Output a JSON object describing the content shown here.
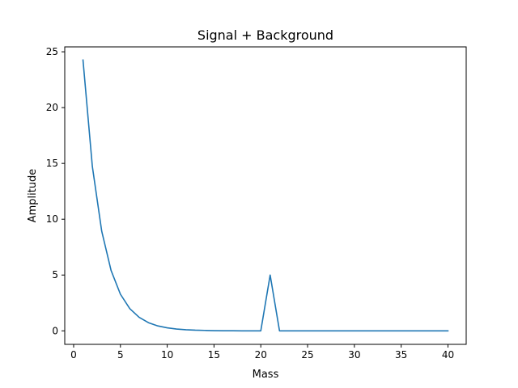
{
  "chart_data": {
    "type": "line",
    "title": "Signal + Background",
    "xlabel": "Mass",
    "ylabel": "Amplitude",
    "xlim": [
      -0.95,
      41.95
    ],
    "ylim": [
      -1.21,
      25.44
    ],
    "grid": false,
    "xticks": [
      0,
      5,
      10,
      15,
      20,
      25,
      30,
      35,
      40
    ],
    "yticks": [
      0,
      5,
      10,
      15,
      20,
      25
    ],
    "series": [
      {
        "color": "#1f77b4",
        "x": [
          1,
          2,
          3,
          4,
          5,
          6,
          7,
          8,
          9,
          10,
          11,
          12,
          13,
          14,
          15,
          16,
          17,
          18,
          19,
          20,
          21,
          22,
          23,
          24,
          25,
          26,
          27,
          28,
          29,
          30,
          31,
          32,
          33,
          34,
          35,
          36,
          37,
          38,
          39,
          40
        ],
        "y": [
          24.26,
          14.72,
          8.93,
          5.41,
          3.28,
          1.99,
          1.21,
          0.73,
          0.44,
          0.27,
          0.16,
          0.1,
          0.06,
          0.04,
          0.02,
          0.01,
          0.01,
          0.0,
          0.0,
          0.0,
          5.0,
          0.0,
          0.0,
          0.0,
          0.0,
          0.0,
          0.0,
          0.0,
          0.0,
          0.0,
          0.0,
          0.0,
          0.0,
          0.0,
          0.0,
          0.0,
          0.0,
          0.0,
          0.0,
          0.0
        ]
      }
    ]
  }
}
